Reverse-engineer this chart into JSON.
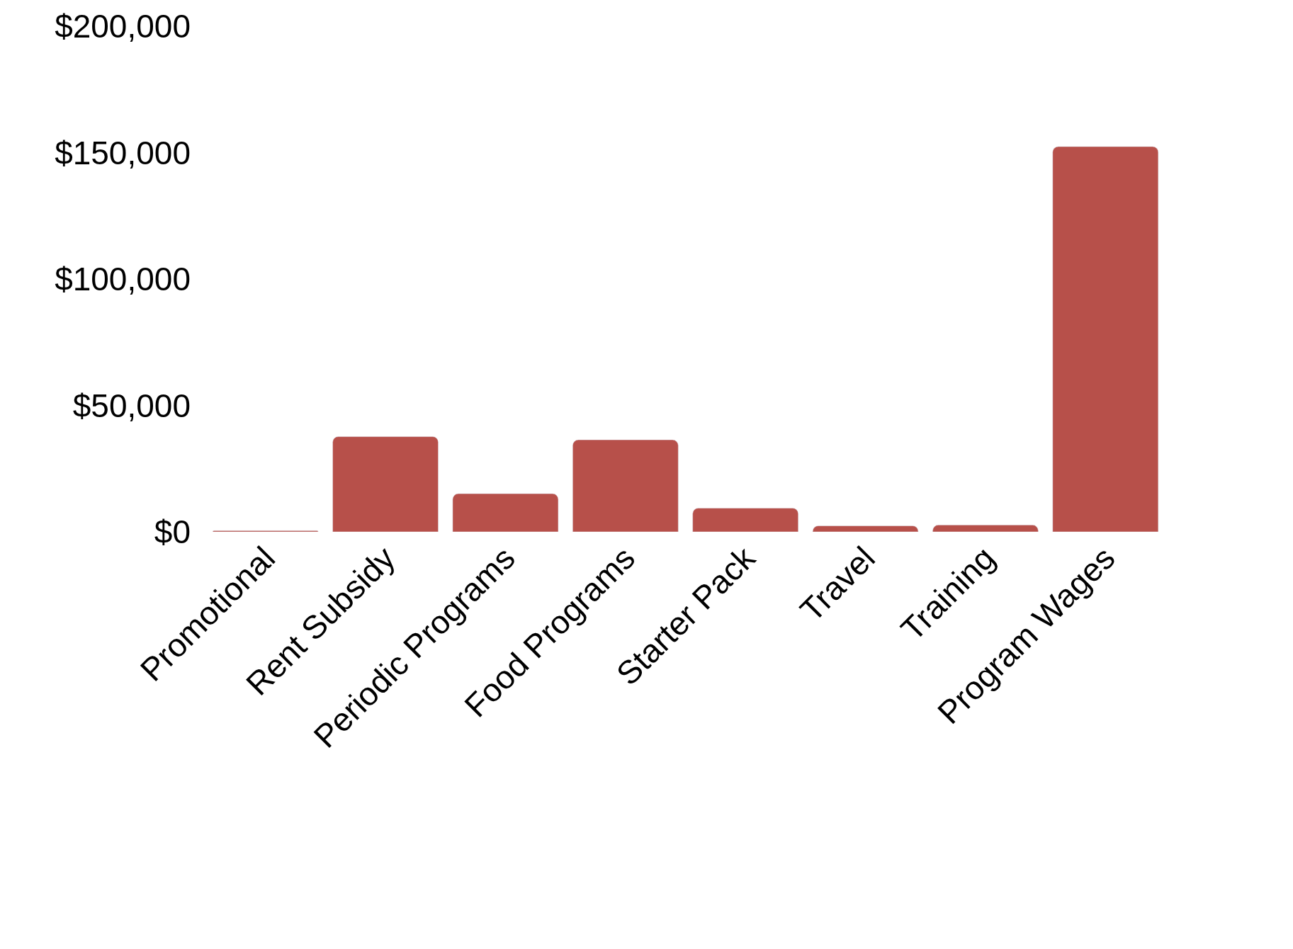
{
  "chart_data": {
    "type": "bar",
    "categories": [
      "Promotional",
      "Rent Subsidy",
      "Periodic Programs",
      "Food Programs",
      "Starter Pack",
      "Travel",
      "Training",
      "Program Wages"
    ],
    "values": [
      500,
      37700,
      15100,
      36400,
      9400,
      2400,
      2700,
      152400
    ],
    "color": "#b7504a",
    "ylim": [
      0,
      200000
    ],
    "yticks": [
      {
        "value": 0,
        "label": "$0"
      },
      {
        "value": 50000,
        "label": "$50,000"
      },
      {
        "value": 100000,
        "label": "$100,000"
      },
      {
        "value": 150000,
        "label": "$150,000"
      },
      {
        "value": 200000,
        "label": "$200,000"
      }
    ],
    "data_labels": false
  }
}
